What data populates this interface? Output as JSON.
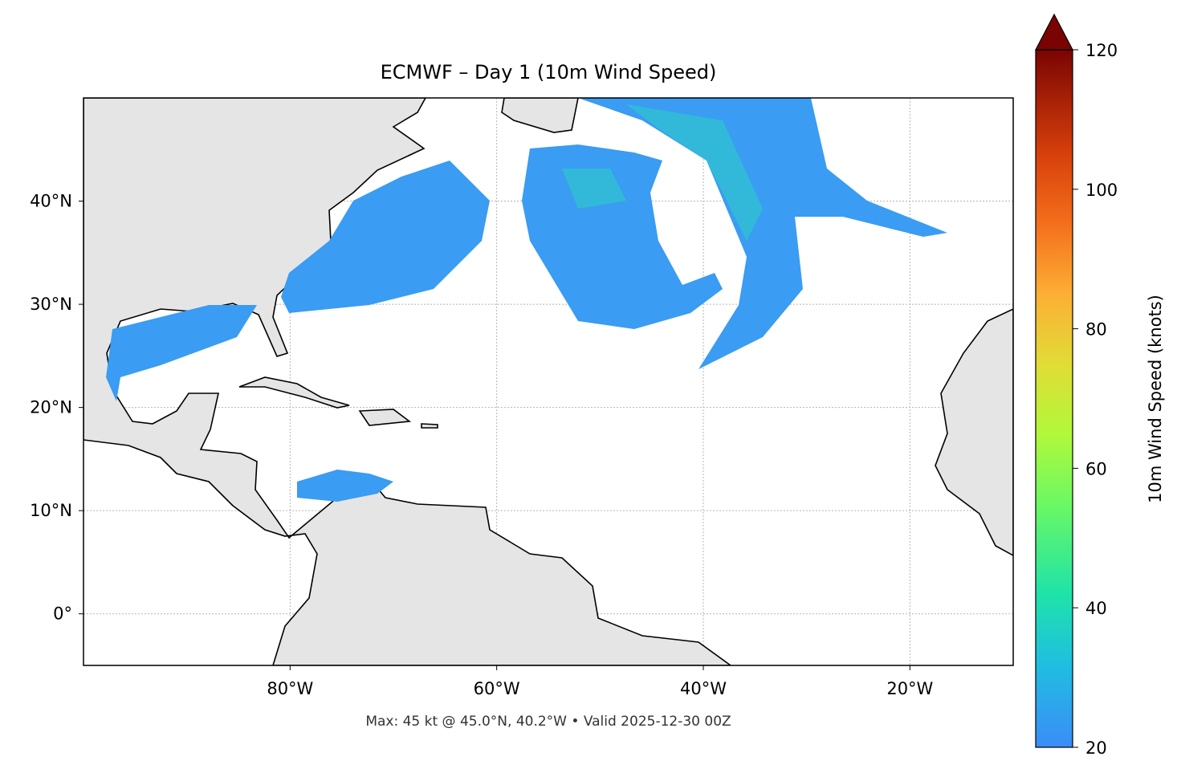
{
  "map": {
    "title": "ECMWF – Day 1 (10m Wind Speed)",
    "xlim": [
      -100,
      -10
    ],
    "ylim": [
      -5,
      50
    ],
    "lon_ticks": [
      {
        "value": -80,
        "label": "80°W"
      },
      {
        "value": -60,
        "label": "60°W"
      },
      {
        "value": -40,
        "label": "40°W"
      },
      {
        "value": -20,
        "label": "20°W"
      }
    ],
    "lat_ticks": [
      {
        "value": 0,
        "label": "0°"
      },
      {
        "value": 10,
        "label": "10°N"
      },
      {
        "value": 20,
        "label": "20°N"
      },
      {
        "value": 30,
        "label": "30°N"
      },
      {
        "value": 40,
        "label": "40°N"
      }
    ],
    "footer": "Max: 45 kt @ 45.0°N, 40.2°W • Valid 2025-12-30 00Z"
  },
  "colorbar": {
    "label": "10m Wind Speed (knots)",
    "lim": [
      20,
      120
    ],
    "ticks": [
      20,
      40,
      60,
      80,
      100,
      120
    ]
  }
}
